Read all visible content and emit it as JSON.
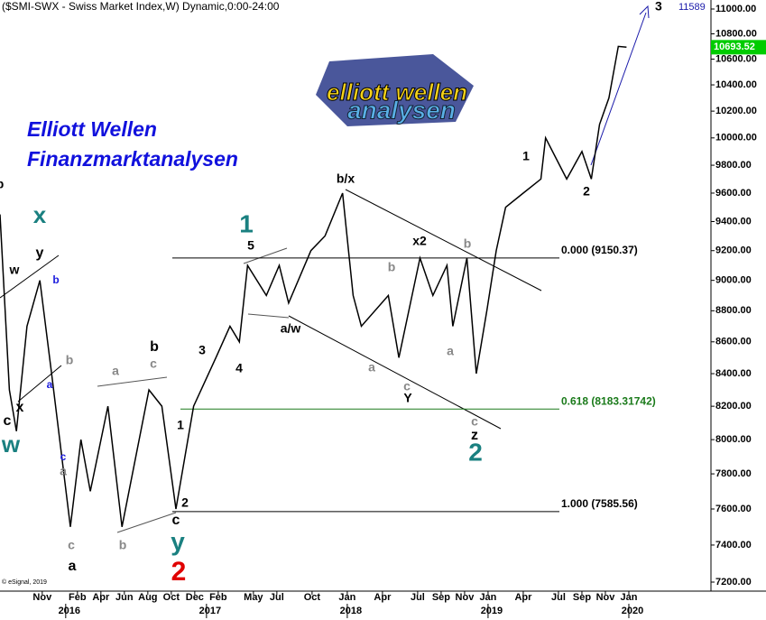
{
  "header": {
    "title": "($SMI-SWX - Swiss Market Index,W) Dynamic,0:00-24:00",
    "copyright": "© eSignal, 2019"
  },
  "branding": {
    "headline": [
      "Elliott Wellen",
      "Finanzmarktanalysen"
    ],
    "logo": [
      "elliott wellen",
      "analysen"
    ]
  },
  "chart_data": {
    "type": "line",
    "log_scale": true,
    "color": "#000000",
    "x": [
      -5.6,
      -4.8,
      -4.2,
      -3.3,
      -2.2,
      -1.2,
      0.4,
      1.3,
      2.1,
      3.6,
      4.8,
      7.1,
      8.2,
      9.4,
      10.9,
      12.8,
      14.0,
      14.8,
      15.5,
      17.1,
      18.2,
      19.0,
      20.9,
      22.1,
      23.6,
      24.5,
      25.2,
      27.5,
      28.4,
      30.2,
      31.3,
      32.5,
      33.0,
      34.2,
      35.0,
      35.9,
      36.7,
      37.5,
      39.0,
      40.5,
      40.9,
      42.7,
      44.0,
      44.8,
      45.5,
      46.3,
      47.1,
      47.8
    ],
    "values": [
      9450,
      8300,
      8050,
      8700,
      9000,
      8400,
      7500,
      8000,
      7700,
      8200,
      7500,
      8300,
      8200,
      7600,
      8200,
      8500,
      8700,
      8600,
      9100,
      8900,
      9100,
      8850,
      9200,
      9300,
      9600,
      8900,
      8700,
      8900,
      8500,
      9150,
      8900,
      9100,
      8700,
      9150,
      8400,
      8800,
      9200,
      9500,
      9600,
      9700,
      10000,
      9700,
      9900,
      9700,
      10100,
      10300,
      10700,
      10693.52
    ],
    "value_labels": [
      null,
      null,
      null,
      null,
      null,
      null,
      null,
      null,
      null,
      null,
      null,
      null,
      null,
      null,
      null,
      null,
      null,
      null,
      null,
      null,
      null,
      null,
      null,
      null,
      null,
      null,
      null,
      null,
      null,
      null,
      null,
      null,
      null,
      null,
      null,
      null,
      null,
      null,
      null,
      null,
      null,
      null,
      null,
      null,
      null,
      null,
      null,
      "10693.52"
    ],
    "last_color": "#00cc00",
    "xlim": [
      -5.6,
      55
    ],
    "xticks": [
      {
        "value": -2,
        "label": "Nov"
      },
      {
        "value": 1,
        "label": "Feb"
      },
      {
        "value": 3,
        "label": "Apr"
      },
      {
        "value": 5,
        "label": "Jun"
      },
      {
        "value": 7,
        "label": "Aug"
      },
      {
        "value": 9,
        "label": "Oct"
      },
      {
        "value": 11,
        "label": "Dec"
      },
      {
        "value": 13,
        "label": "Feb"
      },
      {
        "value": 16,
        "label": "May"
      },
      {
        "value": 18,
        "label": "Jul"
      },
      {
        "value": 21,
        "label": "Oct"
      },
      {
        "value": 24,
        "label": "Jan"
      },
      {
        "value": 27,
        "label": "Apr"
      },
      {
        "value": 30,
        "label": "Jul"
      },
      {
        "value": 32,
        "label": "Sep"
      },
      {
        "value": 34,
        "label": "Nov"
      },
      {
        "value": 36,
        "label": "Jan"
      },
      {
        "value": 39,
        "label": "Apr"
      },
      {
        "value": 42,
        "label": "Jul"
      },
      {
        "value": 44,
        "label": "Sep"
      },
      {
        "value": 46,
        "label": "Nov"
      },
      {
        "value": 48,
        "label": "Jan"
      }
    ],
    "year_ticks": [
      {
        "value": 0,
        "label": "2016"
      },
      {
        "value": 12,
        "label": "2017"
      },
      {
        "value": 24,
        "label": "2018"
      },
      {
        "value": 36,
        "label": "2019"
      },
      {
        "value": 48,
        "label": "2020"
      }
    ],
    "ylim": [
      7200,
      11000
    ],
    "yticks": [
      {
        "value": 7200,
        "label": "7200.00"
      },
      {
        "value": 7400,
        "label": "7400.00"
      },
      {
        "value": 7600,
        "label": "7600.00"
      },
      {
        "value": 7800,
        "label": "7800.00"
      },
      {
        "value": 8000,
        "label": "8000.00"
      },
      {
        "value": 8200,
        "label": "8200.00"
      },
      {
        "value": 8400,
        "label": "8400.00"
      },
      {
        "value": 8600,
        "label": "8600.00"
      },
      {
        "value": 8800,
        "label": "8800.00"
      },
      {
        "value": 9000,
        "label": "9000.00"
      },
      {
        "value": 9200,
        "label": "9200.00"
      },
      {
        "value": 9400,
        "label": "9400.00"
      },
      {
        "value": 9600,
        "label": "9600.00"
      },
      {
        "value": 9800,
        "label": "9800.00"
      },
      {
        "value": 10000,
        "label": "10000.00"
      },
      {
        "value": 10200,
        "label": "10200.00"
      },
      {
        "value": 10400,
        "label": "10400.00"
      },
      {
        "value": 10600,
        "label": "10600.00"
      },
      {
        "value": 10800,
        "label": "10800.00"
      },
      {
        "value": 11000,
        "label": "11000.00"
      }
    ],
    "levels": [
      {
        "value": 9150.37,
        "label": "0.000 (9150.37)",
        "color": "#000000"
      },
      {
        "value": 8183.31742,
        "label": "0.618 (8183.31742)",
        "color": "#1a7a1a"
      },
      {
        "value": 7585.56,
        "label": "1.000 (7585.56)",
        "color": "#000000"
      }
    ],
    "target": {
      "value": 11589,
      "label": "11589",
      "wave": "3"
    },
    "annotations": [
      "b",
      "x",
      "y",
      "w",
      "b",
      "a",
      "b",
      "c",
      "x",
      "w",
      "c",
      "a",
      "c",
      "a",
      "b",
      "a",
      "c",
      "b",
      "1",
      "2",
      "c",
      "y",
      "2",
      "3",
      "4",
      "5",
      "1",
      "a/w",
      "b/x",
      "b",
      "a",
      "c",
      "Y",
      "x2",
      "b",
      "a",
      "c",
      "z",
      "2",
      "1",
      "2"
    ]
  }
}
